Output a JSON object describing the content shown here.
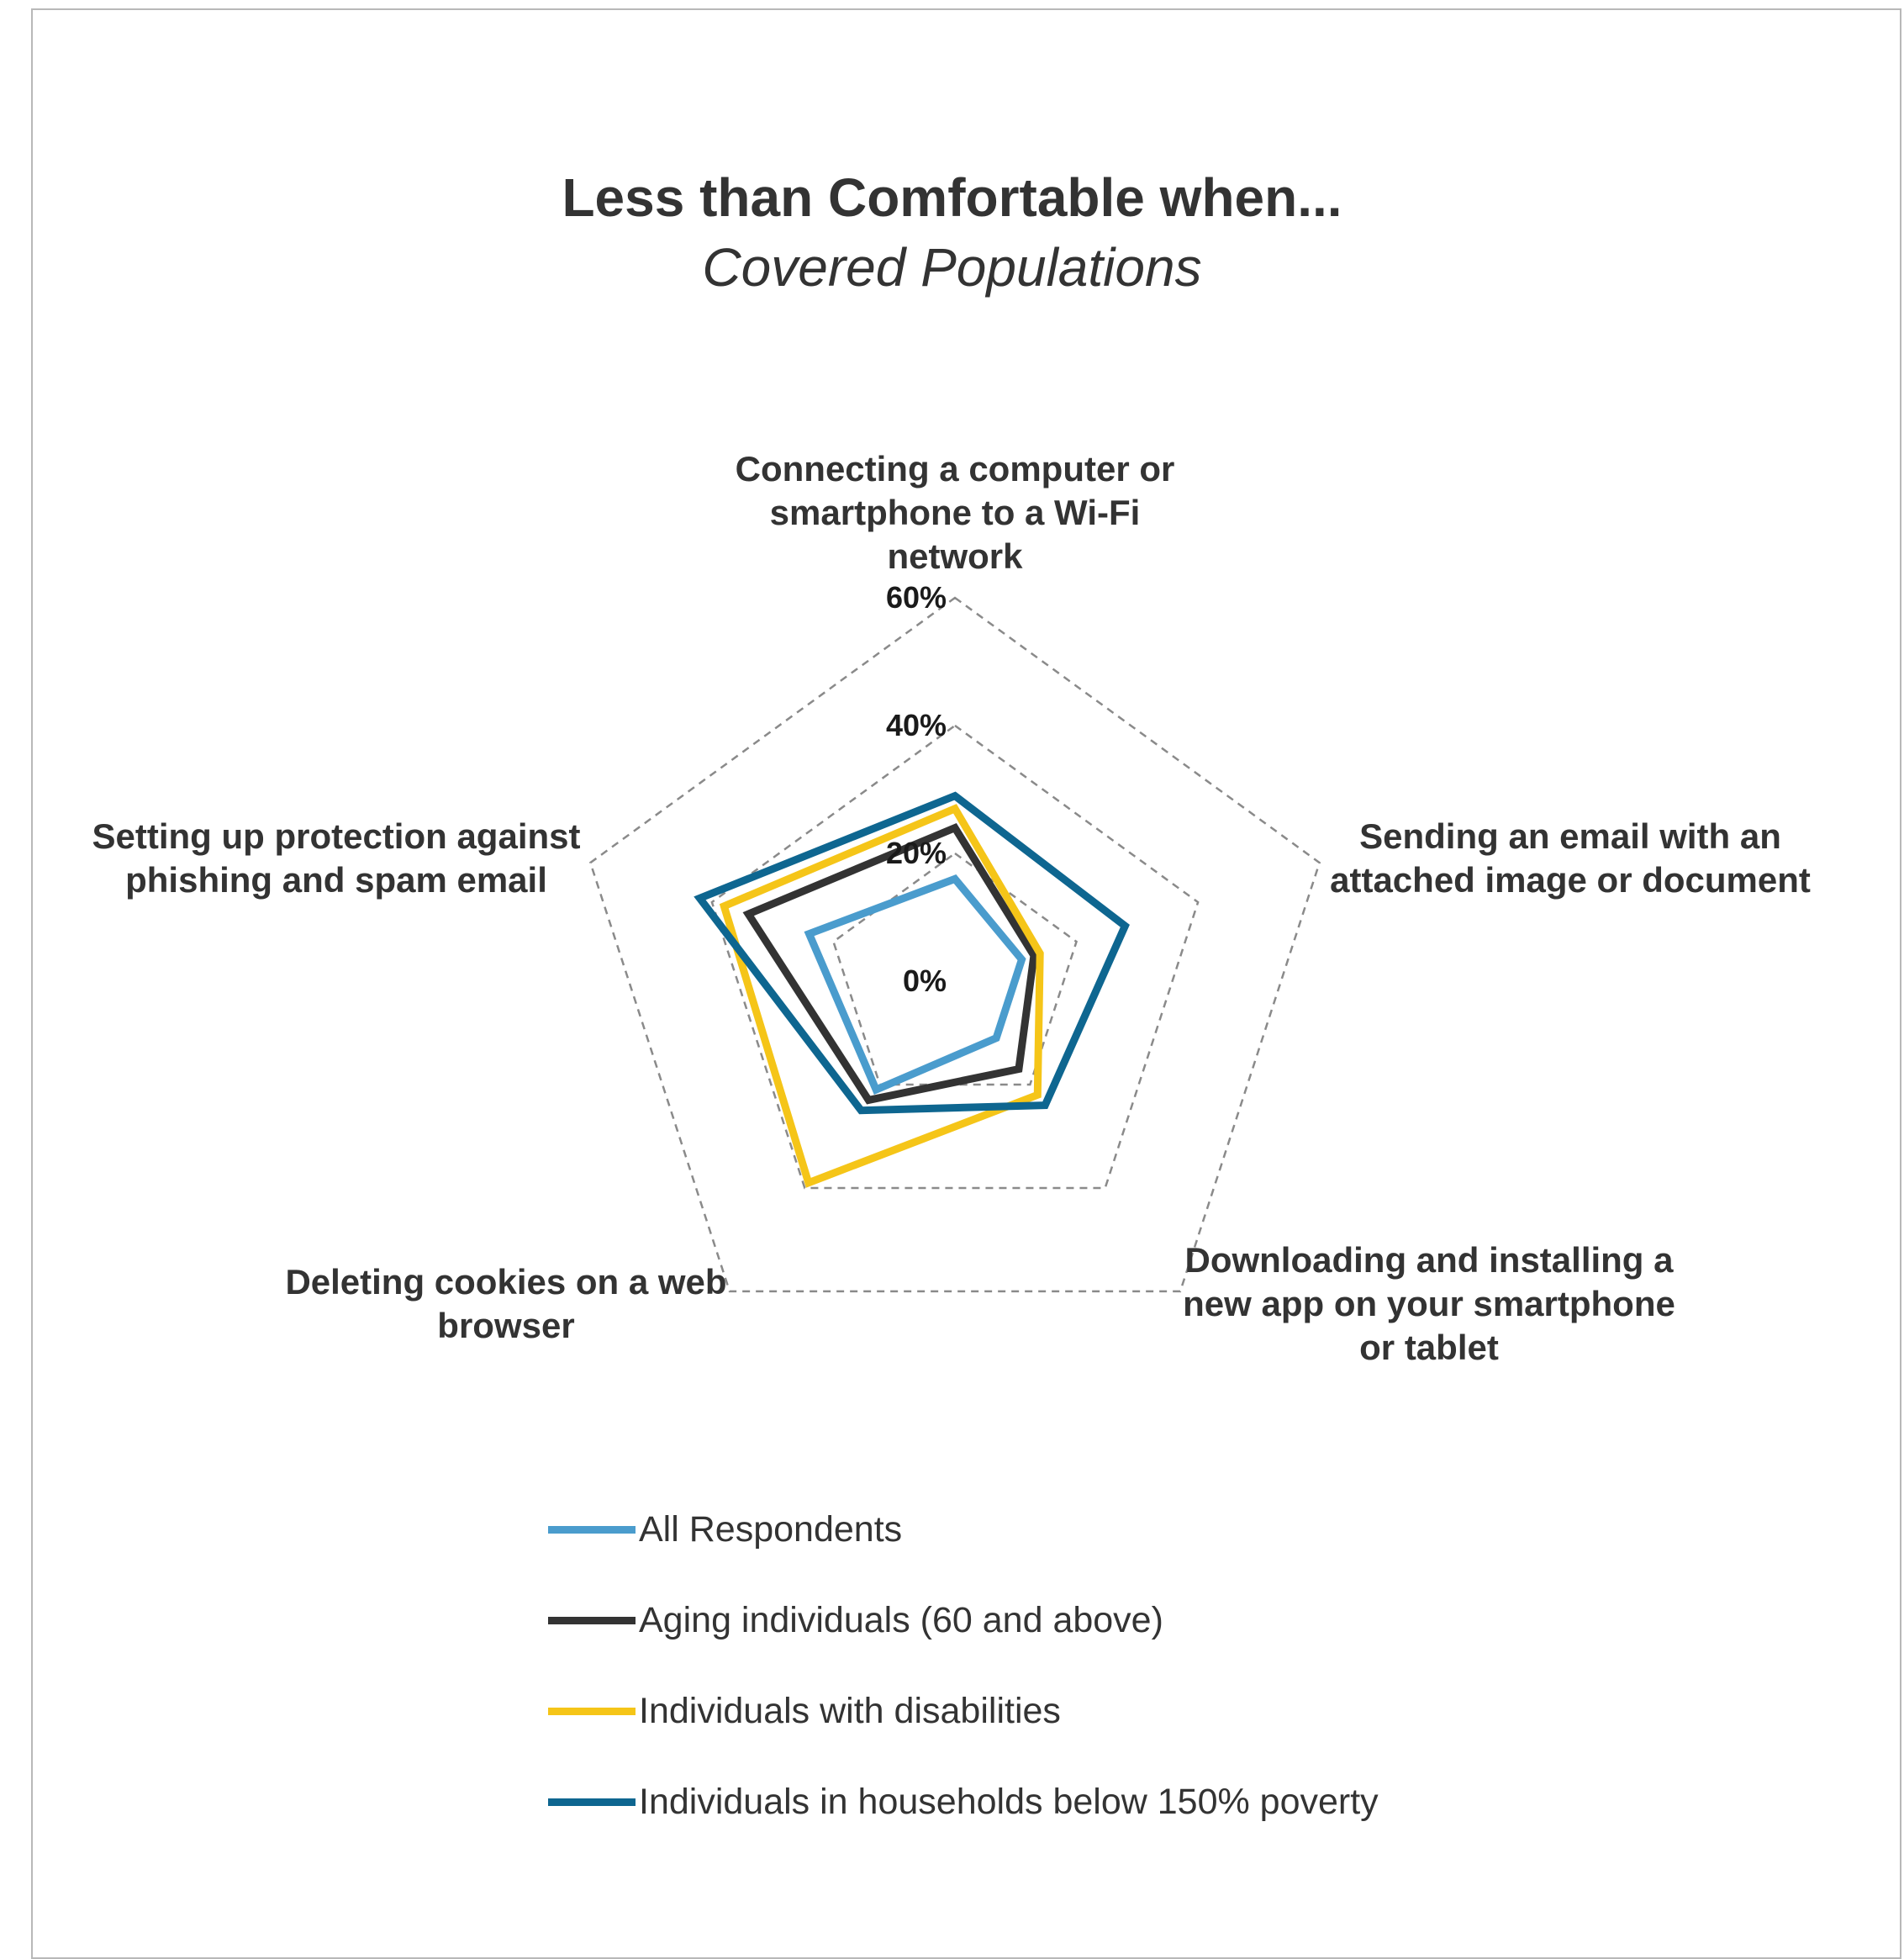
{
  "chart_data": {
    "type": "radar",
    "title": "Less than Comfortable when...",
    "subtitle": "Covered Populations",
    "axes": [
      [
        "Connecting a computer or",
        "smartphone to a Wi-Fi",
        "network"
      ],
      [
        "Sending an email with an",
        "attached image or document"
      ],
      [
        "Downloading and installing a",
        "new app on your smartphone",
        "or tablet"
      ],
      [
        "Deleting cookies on a web",
        "browser"
      ],
      [
        "Setting up protection against",
        "phishing and spam email"
      ]
    ],
    "ticks": [
      "0%",
      "20%",
      "40%",
      "60%"
    ],
    "tick_values": [
      0,
      20,
      40,
      60
    ],
    "range": [
      0,
      60
    ],
    "gridlines": "dashed",
    "legend_position": "bottom",
    "series": [
      {
        "name": "All Respondents",
        "color": "#4a9ccd",
        "values": [
          16,
          11,
          11,
          21,
          24
        ]
      },
      {
        "name": "Aging individuals (60 and above)",
        "color": "#333333",
        "values": [
          24,
          13,
          17,
          23,
          34
        ]
      },
      {
        "name": "Individuals with disabilities",
        "color": "#f5c518",
        "values": [
          27,
          14,
          22,
          39,
          38
        ]
      },
      {
        "name": "Individuals in households below 150% poverty",
        "color": "#0e6690",
        "values": [
          29,
          28,
          24,
          25,
          42
        ]
      }
    ]
  }
}
